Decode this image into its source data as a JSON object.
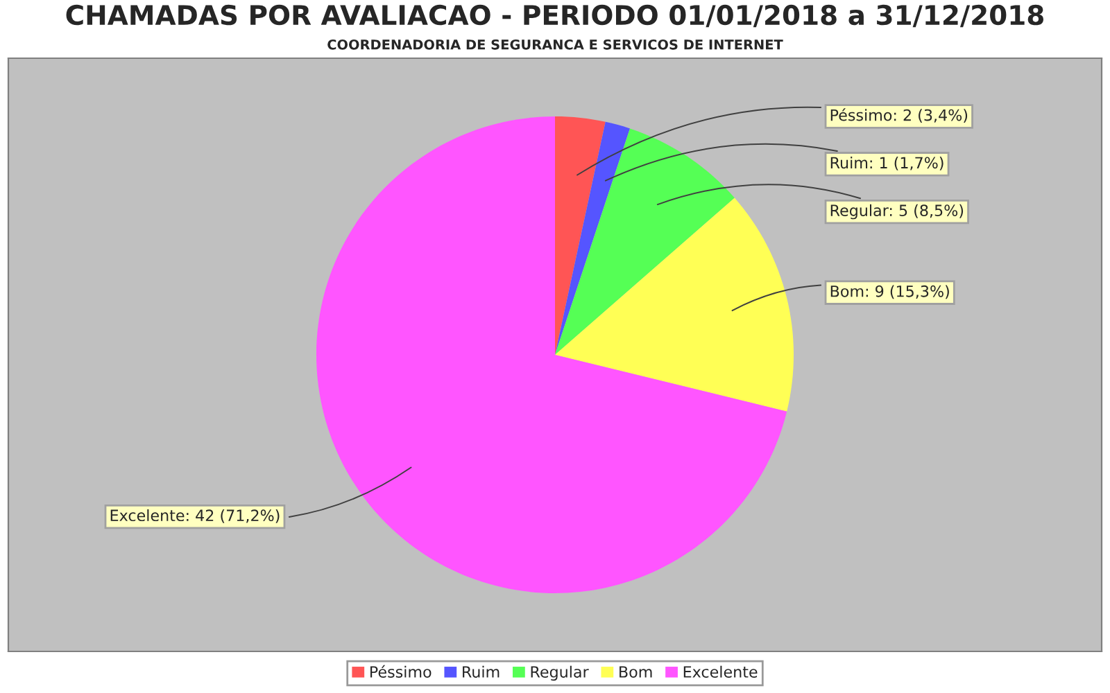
{
  "chart_data": {
    "type": "pie",
    "title": "CHAMADAS POR AVALIACAO - PERIODO 01/01/2018 a 31/12/2018",
    "subtitle": "COORDENADORIA DE SEGURANCA E SERVICOS DE INTERNET",
    "categories": [
      "Péssimo",
      "Ruim",
      "Regular",
      "Bom",
      "Excelente"
    ],
    "values": [
      2,
      1,
      5,
      9,
      42
    ],
    "colors": [
      "#ff5555",
      "#5555ff",
      "#55ff55",
      "#ffff55",
      "#ff55ff"
    ],
    "value_labels": [
      "Péssimo: 2 (3,4%)",
      "Ruim: 1 (1,7%)",
      "Regular: 5 (8,5%)",
      "Bom: 9 (15,3%)",
      "Excelente: 42 (71,2%)"
    ],
    "legend": "bottom"
  }
}
